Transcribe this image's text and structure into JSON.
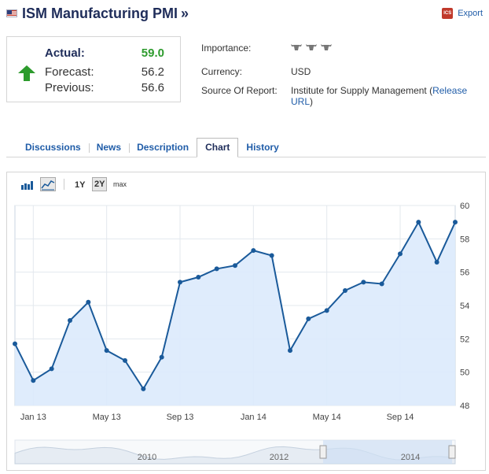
{
  "header": {
    "title": "ISM Manufacturing PMI",
    "title_suffix": "»",
    "flag_icon": "us-flag-icon"
  },
  "export": {
    "label": "Export",
    "icon": "ics-calendar-icon",
    "icon_text": "ICS"
  },
  "summary": {
    "actual_label": "Actual:",
    "actual_value": "59.0",
    "forecast_label": "Forecast:",
    "forecast_value": "56.2",
    "previous_label": "Previous:",
    "previous_value": "56.6",
    "arrow_icon": "up-arrow-icon",
    "actual_color": "#2d9b2d"
  },
  "details": {
    "importance_label": "Importance:",
    "importance_level": 3,
    "currency_label": "Currency:",
    "currency_value": "USD",
    "source_label": "Source Of Report:",
    "source_value": "Institute for Supply Management (",
    "source_link": "Release URL",
    "source_close": ")"
  },
  "tabs": [
    {
      "label": "Discussions",
      "active": false
    },
    {
      "label": "News",
      "active": false
    },
    {
      "label": "Description",
      "active": false
    },
    {
      "label": "Chart",
      "active": true
    },
    {
      "label": "History",
      "active": false
    }
  ],
  "chart_toolbar": {
    "bar_icon": "bar-chart-icon",
    "line_icon": "line-chart-icon",
    "ranges": [
      "1Y",
      "2Y",
      "max"
    ],
    "selected_range": "2Y"
  },
  "chart_data": {
    "type": "area",
    "series": [
      {
        "values": [
          51.7,
          49.5,
          50.2,
          53.1,
          54.2,
          51.3,
          50.7,
          49.0,
          50.9,
          55.4,
          55.7,
          56.2,
          56.4,
          57.3,
          57.0,
          51.3,
          53.2,
          53.7,
          54.9,
          55.4,
          55.3,
          57.1,
          59.0,
          56.6,
          59.0
        ]
      }
    ],
    "x_tick_labels": [
      "Jan 13",
      "May 13",
      "Sep 13",
      "Jan 14",
      "May 14",
      "Sep 14"
    ],
    "y_tick_labels": [
      "48",
      "50",
      "52",
      "54",
      "56",
      "58",
      "60"
    ],
    "ylim": [
      48,
      60
    ],
    "y_axis_position": "right",
    "grid": true,
    "line_color": "#1a5a9a",
    "fill_color": "#dbeafc",
    "navigator_labels": [
      "2010",
      "2012",
      "2014"
    ]
  }
}
